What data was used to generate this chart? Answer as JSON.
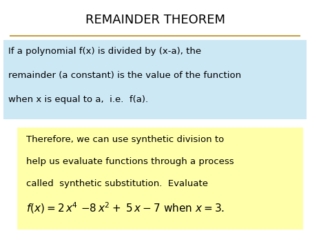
{
  "title": "REMAINDER THEOREM",
  "title_fontsize": 13,
  "title_color": "#000000",
  "bg_color": "#ffffff",
  "line_color": "#c8a040",
  "box1_color": "#cce8f5",
  "box2_color": "#ffffaa",
  "box1_text_line1": "If a polynomial f(x) is divided by (x-a), the",
  "box1_text_line2": "remainder (a constant) is the value of the function",
  "box1_text_line3": "when x is equal to a,  i.e.  f(a).",
  "box2_text_line1": "Therefore, we can use synthetic division to",
  "box2_text_line2": "help us evaluate functions through a process",
  "box2_text_line3": "called  synthetic substitution.  Evaluate",
  "text_fontsize": 9.5,
  "formula_fontsize": 11
}
